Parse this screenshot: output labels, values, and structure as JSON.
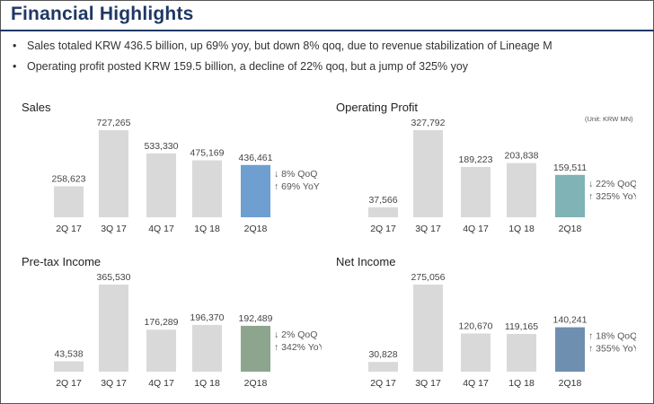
{
  "page": {
    "title": "Financial Highlights",
    "bullets": [
      "Sales totaled KRW 436.5 billion, up 69% yoy, but down 8% qoq, due to revenue stabilization of Lineage M",
      "Operating profit posted KRW 159.5 billion, a decline of 22% qoq, but a jump of 325% yoy"
    ],
    "unit_note": "(Unit: KRW MN)"
  },
  "colors": {
    "title": "#1f3864",
    "bar_default": "#d9d9d9"
  },
  "chart_data": [
    {
      "type": "bar",
      "title": "Sales",
      "categories": [
        "2Q 17",
        "3Q 17",
        "4Q 17",
        "1Q 18",
        "2Q18"
      ],
      "values": [
        258623,
        727265,
        533330,
        475169,
        436461
      ],
      "value_labels": [
        "258,623",
        "727,265",
        "533,330",
        "475,169",
        "436,461"
      ],
      "highlight_color": "#6e9fd0",
      "changes": [
        "↓ 8% QoQ",
        "↑ 69% YoY"
      ],
      "ylim": [
        0,
        727265
      ]
    },
    {
      "type": "bar",
      "title": "Operating Profit",
      "categories": [
        "2Q 17",
        "3Q 17",
        "4Q 17",
        "1Q 18",
        "2Q18"
      ],
      "values": [
        37566,
        327792,
        189223,
        203838,
        159511
      ],
      "value_labels": [
        "37,566",
        "327,792",
        "189,223",
        "203,838",
        "159,511"
      ],
      "highlight_color": "#7fb3b5",
      "changes": [
        "↓ 22% QoQ",
        "↑ 325% YoY"
      ],
      "ylim": [
        0,
        327792
      ]
    },
    {
      "type": "bar",
      "title": "Pre-tax Income",
      "categories": [
        "2Q 17",
        "3Q 17",
        "4Q 17",
        "1Q 18",
        "2Q18"
      ],
      "values": [
        43538,
        365530,
        176289,
        196370,
        192489
      ],
      "value_labels": [
        "43,538",
        "365,530",
        "176,289",
        "196,370",
        "192,489"
      ],
      "highlight_color": "#8ea58d",
      "changes": [
        "↓ 2% QoQ",
        "↑ 342% YoY"
      ],
      "ylim": [
        0,
        365530
      ]
    },
    {
      "type": "bar",
      "title": "Net Income",
      "categories": [
        "2Q 17",
        "3Q 17",
        "4Q 17",
        "1Q 18",
        "2Q18"
      ],
      "values": [
        30828,
        275056,
        120670,
        119165,
        140241
      ],
      "value_labels": [
        "30,828",
        "275,056",
        "120,670",
        "119,165",
        "140,241"
      ],
      "highlight_color": "#6f8fb0",
      "changes": [
        "↑ 18% QoQ",
        "↑ 355% YoY"
      ],
      "ylim": [
        0,
        275056
      ]
    }
  ]
}
